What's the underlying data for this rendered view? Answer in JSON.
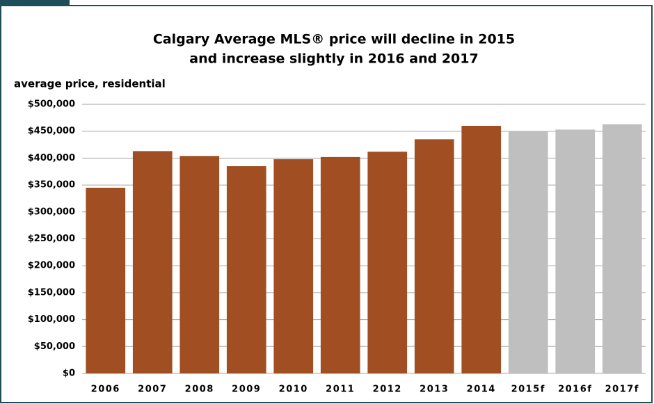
{
  "chart_data": {
    "type": "bar",
    "title": [
      "Calgary Average MLS® price will decline in 2015",
      "and increase slightly in 2016 and 2017"
    ],
    "y_axis_label": "average price, residential",
    "categories": [
      "2006",
      "2007",
      "2008",
      "2009",
      "2010",
      "2011",
      "2012",
      "2013",
      "2014",
      "2015f",
      "2016f",
      "2017f"
    ],
    "values": [
      345000,
      413000,
      404000,
      385000,
      398000,
      402000,
      412000,
      435000,
      460000,
      450000,
      453000,
      463000
    ],
    "colors": [
      "#a14f22",
      "#a14f22",
      "#a14f22",
      "#a14f22",
      "#a14f22",
      "#a14f22",
      "#a14f22",
      "#a14f22",
      "#a14f22",
      "#bfbfbf",
      "#bfbfbf",
      "#bfbfbf"
    ],
    "ylim": [
      0,
      500000
    ],
    "yticks": [
      {
        "value": 0,
        "label": "$0"
      },
      {
        "value": 50000,
        "label": "$50,000"
      },
      {
        "value": 100000,
        "label": "$100,000"
      },
      {
        "value": 150000,
        "label": "$150,000"
      },
      {
        "value": 200000,
        "label": "$200,000"
      },
      {
        "value": 250000,
        "label": "$250,000"
      },
      {
        "value": 300000,
        "label": "$300,000"
      },
      {
        "value": 350000,
        "label": "$350,000"
      },
      {
        "value": 400000,
        "label": "$400,000"
      },
      {
        "value": 450000,
        "label": "$450,000"
      },
      {
        "value": 500000,
        "label": "$500,000"
      }
    ],
    "grid": true
  }
}
